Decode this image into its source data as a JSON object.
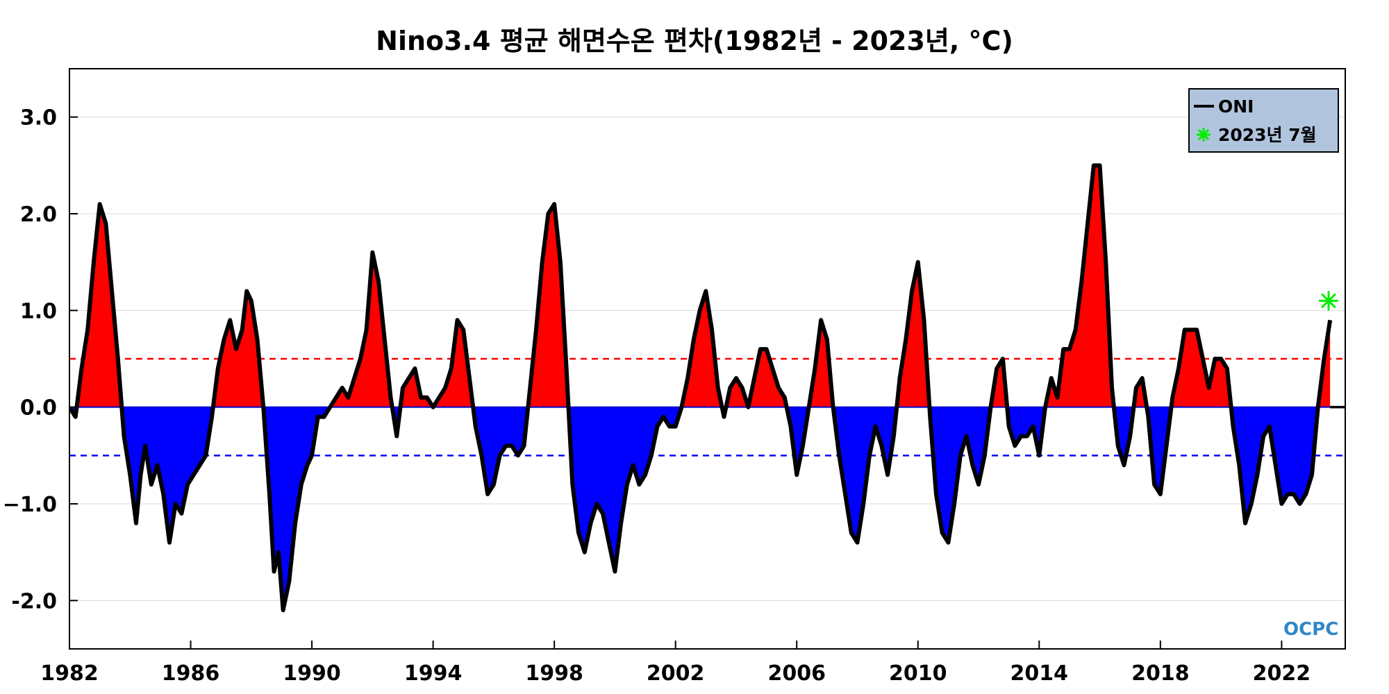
{
  "chart_data": {
    "type": "area",
    "title": "Nino3.4 평균 해면수온 편차(1982년 - 2023년, °C)",
    "xlabel": "",
    "ylabel": "",
    "xlim": [
      1982,
      2024.1
    ],
    "ylim": [
      -2.5,
      3.5
    ],
    "x_ticks": [
      1982,
      1986,
      1990,
      1994,
      1998,
      2002,
      2006,
      2010,
      2014,
      2018,
      2022
    ],
    "y_ticks": [
      3.0,
      2.0,
      1.0,
      0.0,
      -1.0,
      -2.0
    ],
    "y_tick_labels": [
      "3.0",
      "2.0",
      "1.0",
      "0.0",
      "−1.0",
      "-2.0"
    ],
    "thresholds": [
      {
        "value": 0.5,
        "color": "#ff0000",
        "style": "dashed"
      },
      {
        "value": -0.5,
        "color": "#0000ff",
        "style": "dashed"
      }
    ],
    "grid": true,
    "legend_position": "top-right",
    "fill_colors": {
      "positive": "#ff0000",
      "negative": "#0000ff"
    },
    "series": [
      {
        "name": "ONI",
        "color": "#000000",
        "points": [
          [
            1982.0,
            0.0
          ],
          [
            1982.2,
            -0.1
          ],
          [
            1982.4,
            0.4
          ],
          [
            1982.6,
            0.8
          ],
          [
            1982.8,
            1.5
          ],
          [
            1983.0,
            2.1
          ],
          [
            1983.2,
            1.9
          ],
          [
            1983.4,
            1.2
          ],
          [
            1983.6,
            0.5
          ],
          [
            1983.8,
            -0.3
          ],
          [
            1984.0,
            -0.7
          ],
          [
            1984.2,
            -1.2
          ],
          [
            1984.35,
            -0.7
          ],
          [
            1984.5,
            -0.4
          ],
          [
            1984.7,
            -0.8
          ],
          [
            1984.9,
            -0.6
          ],
          [
            1985.1,
            -0.9
          ],
          [
            1985.3,
            -1.4
          ],
          [
            1985.5,
            -1.0
          ],
          [
            1985.7,
            -1.1
          ],
          [
            1985.9,
            -0.8
          ],
          [
            1986.1,
            -0.7
          ],
          [
            1986.3,
            -0.6
          ],
          [
            1986.5,
            -0.5
          ],
          [
            1986.7,
            -0.1
          ],
          [
            1986.9,
            0.4
          ],
          [
            1987.1,
            0.7
          ],
          [
            1987.3,
            0.9
          ],
          [
            1987.5,
            0.6
          ],
          [
            1987.7,
            0.8
          ],
          [
            1987.85,
            1.2
          ],
          [
            1988.0,
            1.1
          ],
          [
            1988.2,
            0.7
          ],
          [
            1988.4,
            0.0
          ],
          [
            1988.6,
            -0.9
          ],
          [
            1988.75,
            -1.7
          ],
          [
            1988.9,
            -1.5
          ],
          [
            1989.05,
            -2.1
          ],
          [
            1989.25,
            -1.8
          ],
          [
            1989.45,
            -1.2
          ],
          [
            1989.65,
            -0.8
          ],
          [
            1989.85,
            -0.6
          ],
          [
            1990.0,
            -0.5
          ],
          [
            1990.2,
            -0.1
          ],
          [
            1990.4,
            -0.1
          ],
          [
            1990.6,
            0.0
          ],
          [
            1990.8,
            0.1
          ],
          [
            1991.0,
            0.2
          ],
          [
            1991.2,
            0.1
          ],
          [
            1991.4,
            0.3
          ],
          [
            1991.6,
            0.5
          ],
          [
            1991.8,
            0.8
          ],
          [
            1992.0,
            1.6
          ],
          [
            1992.2,
            1.3
          ],
          [
            1992.4,
            0.7
          ],
          [
            1992.6,
            0.1
          ],
          [
            1992.8,
            -0.3
          ],
          [
            1993.0,
            0.2
          ],
          [
            1993.2,
            0.3
          ],
          [
            1993.4,
            0.4
          ],
          [
            1993.6,
            0.1
          ],
          [
            1993.8,
            0.1
          ],
          [
            1994.0,
            0.0
          ],
          [
            1994.2,
            0.1
          ],
          [
            1994.4,
            0.2
          ],
          [
            1994.6,
            0.4
          ],
          [
            1994.8,
            0.9
          ],
          [
            1995.0,
            0.8
          ],
          [
            1995.2,
            0.3
          ],
          [
            1995.4,
            -0.2
          ],
          [
            1995.6,
            -0.5
          ],
          [
            1995.8,
            -0.9
          ],
          [
            1996.0,
            -0.8
          ],
          [
            1996.2,
            -0.5
          ],
          [
            1996.4,
            -0.4
          ],
          [
            1996.6,
            -0.4
          ],
          [
            1996.8,
            -0.5
          ],
          [
            1997.0,
            -0.4
          ],
          [
            1997.2,
            0.2
          ],
          [
            1997.4,
            0.8
          ],
          [
            1997.6,
            1.5
          ],
          [
            1997.8,
            2.0
          ],
          [
            1998.0,
            2.1
          ],
          [
            1998.2,
            1.5
          ],
          [
            1998.4,
            0.4
          ],
          [
            1998.6,
            -0.8
          ],
          [
            1998.8,
            -1.3
          ],
          [
            1999.0,
            -1.5
          ],
          [
            1999.2,
            -1.2
          ],
          [
            1999.4,
            -1.0
          ],
          [
            1999.6,
            -1.1
          ],
          [
            1999.8,
            -1.4
          ],
          [
            2000.0,
            -1.7
          ],
          [
            2000.2,
            -1.2
          ],
          [
            2000.4,
            -0.8
          ],
          [
            2000.6,
            -0.6
          ],
          [
            2000.8,
            -0.8
          ],
          [
            2001.0,
            -0.7
          ],
          [
            2001.2,
            -0.5
          ],
          [
            2001.4,
            -0.2
          ],
          [
            2001.6,
            -0.1
          ],
          [
            2001.8,
            -0.2
          ],
          [
            2002.0,
            -0.2
          ],
          [
            2002.2,
            0.0
          ],
          [
            2002.4,
            0.3
          ],
          [
            2002.6,
            0.7
          ],
          [
            2002.8,
            1.0
          ],
          [
            2003.0,
            1.2
          ],
          [
            2003.2,
            0.8
          ],
          [
            2003.4,
            0.2
          ],
          [
            2003.6,
            -0.1
          ],
          [
            2003.8,
            0.2
          ],
          [
            2004.0,
            0.3
          ],
          [
            2004.2,
            0.2
          ],
          [
            2004.4,
            0.0
          ],
          [
            2004.6,
            0.3
          ],
          [
            2004.8,
            0.6
          ],
          [
            2005.0,
            0.6
          ],
          [
            2005.2,
            0.4
          ],
          [
            2005.4,
            0.2
          ],
          [
            2005.6,
            0.1
          ],
          [
            2005.8,
            -0.2
          ],
          [
            2006.0,
            -0.7
          ],
          [
            2006.2,
            -0.4
          ],
          [
            2006.4,
            0.0
          ],
          [
            2006.6,
            0.4
          ],
          [
            2006.8,
            0.9
          ],
          [
            2007.0,
            0.7
          ],
          [
            2007.2,
            0.0
          ],
          [
            2007.4,
            -0.5
          ],
          [
            2007.6,
            -0.9
          ],
          [
            2007.8,
            -1.3
          ],
          [
            2008.0,
            -1.4
          ],
          [
            2008.2,
            -1.0
          ],
          [
            2008.4,
            -0.5
          ],
          [
            2008.6,
            -0.2
          ],
          [
            2008.8,
            -0.4
          ],
          [
            2009.0,
            -0.7
          ],
          [
            2009.2,
            -0.3
          ],
          [
            2009.4,
            0.3
          ],
          [
            2009.6,
            0.7
          ],
          [
            2009.8,
            1.2
          ],
          [
            2010.0,
            1.5
          ],
          [
            2010.2,
            0.9
          ],
          [
            2010.4,
            -0.1
          ],
          [
            2010.6,
            -0.9
          ],
          [
            2010.8,
            -1.3
          ],
          [
            2011.0,
            -1.4
          ],
          [
            2011.2,
            -1.0
          ],
          [
            2011.4,
            -0.5
          ],
          [
            2011.6,
            -0.3
          ],
          [
            2011.8,
            -0.6
          ],
          [
            2012.0,
            -0.8
          ],
          [
            2012.2,
            -0.5
          ],
          [
            2012.4,
            0.0
          ],
          [
            2012.6,
            0.4
          ],
          [
            2012.8,
            0.5
          ],
          [
            2013.0,
            -0.2
          ],
          [
            2013.2,
            -0.4
          ],
          [
            2013.4,
            -0.3
          ],
          [
            2013.6,
            -0.3
          ],
          [
            2013.8,
            -0.2
          ],
          [
            2014.0,
            -0.5
          ],
          [
            2014.2,
            0.0
          ],
          [
            2014.4,
            0.3
          ],
          [
            2014.6,
            0.1
          ],
          [
            2014.8,
            0.6
          ],
          [
            2015.0,
            0.6
          ],
          [
            2015.2,
            0.8
          ],
          [
            2015.4,
            1.3
          ],
          [
            2015.6,
            1.9
          ],
          [
            2015.8,
            2.5
          ],
          [
            2016.0,
            2.5
          ],
          [
            2016.2,
            1.5
          ],
          [
            2016.4,
            0.2
          ],
          [
            2016.6,
            -0.4
          ],
          [
            2016.8,
            -0.6
          ],
          [
            2017.0,
            -0.3
          ],
          [
            2017.2,
            0.2
          ],
          [
            2017.4,
            0.3
          ],
          [
            2017.6,
            -0.1
          ],
          [
            2017.8,
            -0.8
          ],
          [
            2018.0,
            -0.9
          ],
          [
            2018.2,
            -0.4
          ],
          [
            2018.4,
            0.1
          ],
          [
            2018.6,
            0.4
          ],
          [
            2018.8,
            0.8
          ],
          [
            2019.0,
            0.8
          ],
          [
            2019.2,
            0.8
          ],
          [
            2019.4,
            0.5
          ],
          [
            2019.6,
            0.2
          ],
          [
            2019.8,
            0.5
          ],
          [
            2020.0,
            0.5
          ],
          [
            2020.2,
            0.4
          ],
          [
            2020.4,
            -0.2
          ],
          [
            2020.6,
            -0.6
          ],
          [
            2020.8,
            -1.2
          ],
          [
            2021.0,
            -1.0
          ],
          [
            2021.2,
            -0.7
          ],
          [
            2021.4,
            -0.3
          ],
          [
            2021.6,
            -0.2
          ],
          [
            2021.8,
            -0.6
          ],
          [
            2022.0,
            -1.0
          ],
          [
            2022.2,
            -0.9
          ],
          [
            2022.4,
            -0.9
          ],
          [
            2022.6,
            -1.0
          ],
          [
            2022.8,
            -0.9
          ],
          [
            2023.0,
            -0.7
          ],
          [
            2023.2,
            0.0
          ],
          [
            2023.4,
            0.5
          ],
          [
            2023.6,
            0.9
          ]
        ]
      },
      {
        "name": "2023년 7월",
        "marker": "asterisk",
        "color": "#00ee00",
        "points": [
          [
            2023.55,
            1.1
          ]
        ]
      }
    ]
  },
  "logo": "OCPC"
}
